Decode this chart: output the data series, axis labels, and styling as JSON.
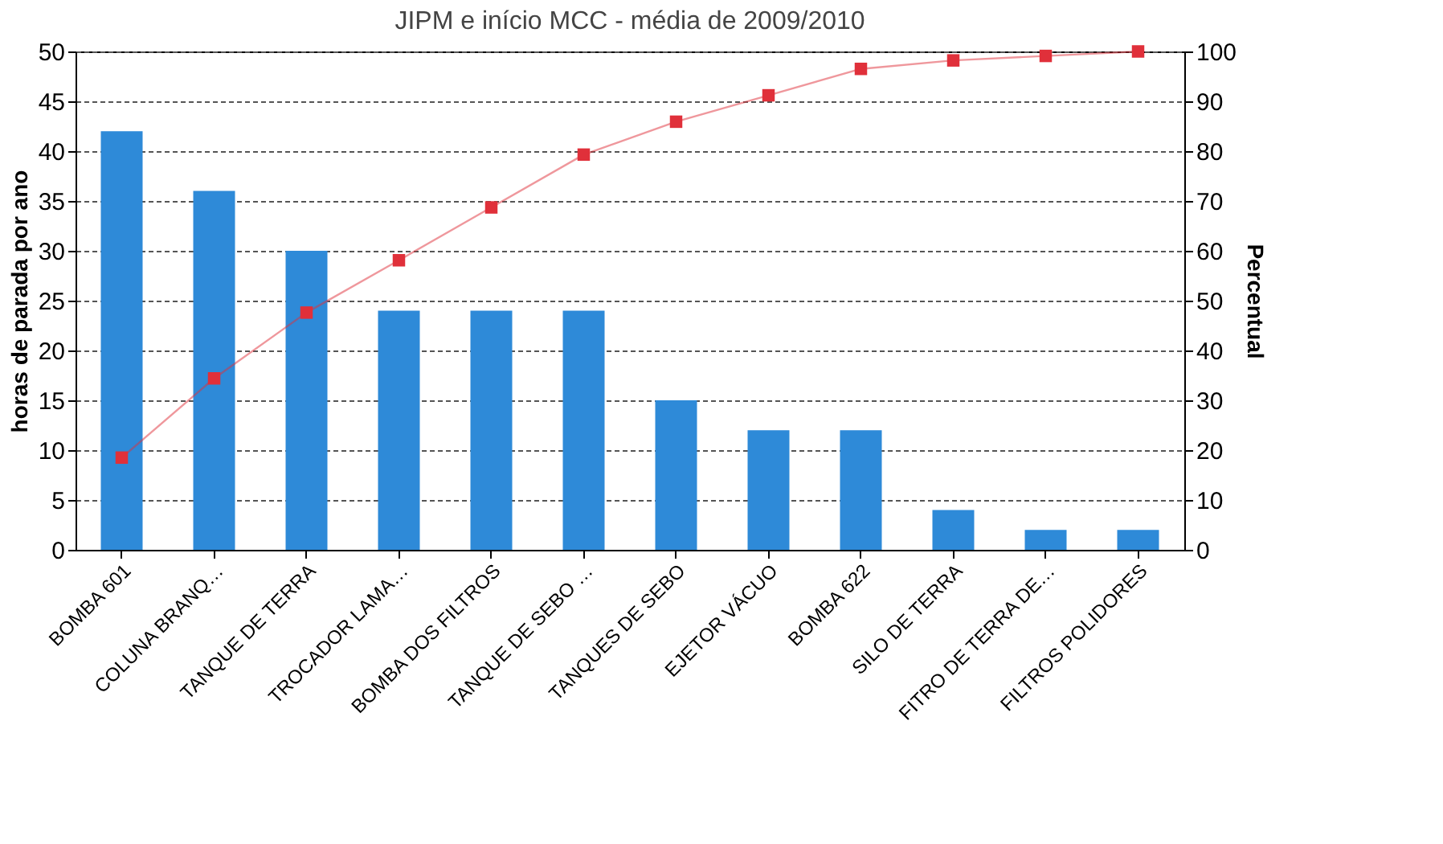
{
  "chart_data": {
    "type": "bar",
    "title": "JIPM e início MCC - média de  2009/2010",
    "ylabel": "horas de parada por ano",
    "y2label": "Percentual",
    "categories": [
      "BOMBA 601",
      "COLUNA BRANQ…",
      "TANQUE DE TERRA",
      "TROCADOR LAMA…",
      "BOMBA DOS FILTROS",
      "TANQUE DE SEBO …",
      "TANQUES DE SEBO",
      "EJETOR VÁCUO",
      "BOMBA 622",
      "SILO DE TERRA",
      "FITRO DE TERRA DE…",
      "FILTROS POLIDORES"
    ],
    "series": [
      {
        "color": "#2e8ad8",
        "values": [
          42,
          36,
          30,
          24,
          24,
          24,
          15,
          12,
          12,
          4,
          2,
          2
        ]
      },
      {
        "type": "line",
        "axis": "y2",
        "color": "#e0303a",
        "marker": "square",
        "values": [
          18.5,
          34.4,
          47.6,
          58.1,
          68.7,
          79.3,
          85.9,
          91.2,
          96.5,
          98.2,
          99.1,
          100
        ]
      }
    ],
    "ylim": [
      0,
      50
    ],
    "yticks": [
      0,
      5,
      10,
      15,
      20,
      25,
      30,
      35,
      40,
      45,
      50
    ],
    "y2lim": [
      0,
      100
    ],
    "y2ticks": [
      0,
      10,
      20,
      30,
      40,
      50,
      60,
      70,
      80,
      90,
      100
    ],
    "grid": "y"
  }
}
